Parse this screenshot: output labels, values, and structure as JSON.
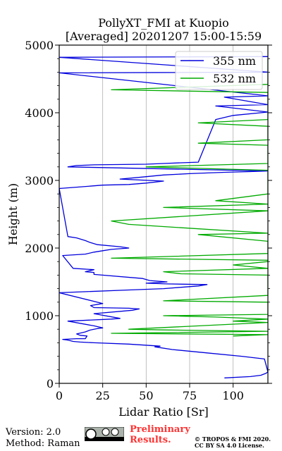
{
  "chart_data": {
    "type": "line",
    "title": [
      "PollyXT_FMI at Kuopio",
      "[Averaged] 20201207 15:00-15:59"
    ],
    "xlabel": "Lidar Ratio [Sr]",
    "ylabel": "Height (m)",
    "xlim": [
      0,
      120
    ],
    "ylim": [
      0,
      5000
    ],
    "x_ticks": [
      "0",
      "25",
      "50",
      "75",
      "100"
    ],
    "x_tick_values": [
      0,
      25,
      50,
      75,
      100
    ],
    "y_ticks": [
      "0",
      "1000",
      "2000",
      "3000",
      "4000",
      "5000"
    ],
    "y_tick_values": [
      0,
      1000,
      2000,
      3000,
      4000,
      5000
    ],
    "grid": "x",
    "legend_position": "top-right",
    "series": [
      {
        "name": "355 nm",
        "color": "#0000dd",
        "points": [
          [
            95,
            80
          ],
          [
            110,
            100
          ],
          [
            116,
            120
          ],
          [
            119,
            150
          ],
          [
            120,
            170
          ],
          [
            118,
            360
          ],
          [
            105,
            400
          ],
          [
            85,
            450
          ],
          [
            65,
            500
          ],
          [
            55,
            540
          ],
          [
            58,
            550
          ],
          [
            40,
            580
          ],
          [
            20,
            600
          ],
          [
            12,
            610
          ],
          [
            8,
            620
          ],
          [
            5,
            640
          ],
          [
            2,
            650
          ],
          [
            10,
            660
          ],
          [
            15,
            660
          ],
          [
            16,
            700
          ],
          [
            12,
            710
          ],
          [
            10,
            730
          ],
          [
            15,
            760
          ],
          [
            18,
            790
          ],
          [
            22,
            810
          ],
          [
            25,
            820
          ],
          [
            20,
            850
          ],
          [
            5,
            920
          ],
          [
            30,
            950
          ],
          [
            35,
            960
          ],
          [
            20,
            1030
          ],
          [
            42,
            1080
          ],
          [
            46,
            1100
          ],
          [
            40,
            1110
          ],
          [
            20,
            1120
          ],
          [
            18,
            1150
          ],
          [
            25,
            1180
          ],
          [
            0,
            1340
          ],
          [
            40,
            1380
          ],
          [
            60,
            1400
          ],
          [
            70,
            1420
          ],
          [
            80,
            1440
          ],
          [
            85,
            1460
          ],
          [
            62,
            1470
          ],
          [
            50,
            1480
          ],
          [
            62,
            1500
          ],
          [
            52,
            1520
          ],
          [
            48,
            1550
          ],
          [
            20,
            1610
          ],
          [
            20,
            1640
          ],
          [
            15,
            1650
          ],
          [
            20,
            1680
          ],
          [
            8,
            1700
          ],
          [
            2,
            1890
          ],
          [
            15,
            1910
          ],
          [
            20,
            1940
          ],
          [
            25,
            1960
          ],
          [
            30,
            1980
          ],
          [
            40,
            2000
          ],
          [
            35,
            2020
          ],
          [
            22,
            2050
          ],
          [
            18,
            2080
          ],
          [
            15,
            2110
          ],
          [
            10,
            2150
          ],
          [
            5,
            2170
          ],
          [
            0,
            2880
          ],
          [
            10,
            2900
          ],
          [
            20,
            2920
          ],
          [
            25,
            2930
          ],
          [
            40,
            2940
          ],
          [
            50,
            2960
          ],
          [
            60,
            2990
          ],
          [
            35,
            3020
          ],
          [
            48,
            3050
          ],
          [
            60,
            3080
          ],
          [
            75,
            3100
          ],
          [
            95,
            3120
          ],
          [
            110,
            3130
          ],
          [
            120,
            3140
          ],
          [
            5,
            3200
          ],
          [
            10,
            3220
          ],
          [
            20,
            3230
          ],
          [
            50,
            3240
          ],
          [
            60,
            3250
          ],
          [
            70,
            3260
          ],
          [
            80,
            3270
          ],
          [
            90,
            3900
          ],
          [
            100,
            3960
          ],
          [
            120,
            4010
          ],
          [
            90,
            4100
          ],
          [
            120,
            4120
          ],
          [
            95,
            4230
          ],
          [
            120,
            4250
          ],
          [
            0,
            4590
          ],
          [
            120,
            4600
          ],
          [
            0,
            4820
          ],
          [
            120,
            4830
          ]
        ]
      },
      {
        "name": "532 nm",
        "color": "#00aa00",
        "points": [
          [
            100,
            700
          ],
          [
            120,
            720
          ],
          [
            30,
            740
          ],
          [
            120,
            770
          ],
          [
            60,
            790
          ],
          [
            40,
            800
          ],
          [
            120,
            900
          ],
          [
            100,
            920
          ],
          [
            120,
            950
          ],
          [
            90,
            980
          ],
          [
            60,
            1000
          ],
          [
            120,
            1020
          ],
          [
            120,
            1200
          ],
          [
            60,
            1220
          ],
          [
            120,
            1300
          ],
          [
            120,
            1580
          ],
          [
            120,
            1600
          ],
          [
            70,
            1620
          ],
          [
            60,
            1650
          ],
          [
            120,
            1700
          ],
          [
            100,
            1750
          ],
          [
            120,
            1800
          ],
          [
            120,
            1820
          ],
          [
            30,
            1850
          ],
          [
            120,
            1920
          ],
          [
            120,
            1970
          ],
          [
            120,
            2050
          ],
          [
            120,
            2100
          ],
          [
            80,
            2200
          ],
          [
            120,
            2220
          ],
          [
            40,
            2350
          ],
          [
            30,
            2400
          ],
          [
            120,
            2550
          ],
          [
            60,
            2600
          ],
          [
            120,
            2650
          ],
          [
            90,
            2700
          ],
          [
            120,
            2800
          ],
          [
            120,
            3150
          ],
          [
            50,
            3200
          ],
          [
            120,
            3250
          ],
          [
            120,
            3480
          ],
          [
            120,
            3520
          ],
          [
            80,
            3550
          ],
          [
            120,
            3600
          ],
          [
            120,
            3700
          ],
          [
            120,
            3800
          ],
          [
            80,
            3850
          ],
          [
            120,
            3900
          ],
          [
            120,
            3950
          ],
          [
            120,
            4150
          ],
          [
            120,
            4200
          ],
          [
            120,
            4300
          ],
          [
            30,
            4340
          ],
          [
            120,
            4420
          ],
          [
            120,
            4450
          ],
          [
            120,
            4500
          ],
          [
            120,
            4580
          ],
          [
            120,
            4750
          ],
          [
            120,
            4800
          ]
        ]
      }
    ]
  },
  "footer": {
    "version": "Version: 2.0",
    "method": "Method: Raman",
    "preliminary_line1": "Preliminary",
    "preliminary_line2": "Results.",
    "copyright_line1": "© TROPOS & FMI 2020.",
    "copyright_line2": "CC BY SA 4.0 License.",
    "preliminary_color": "#ff3333"
  }
}
